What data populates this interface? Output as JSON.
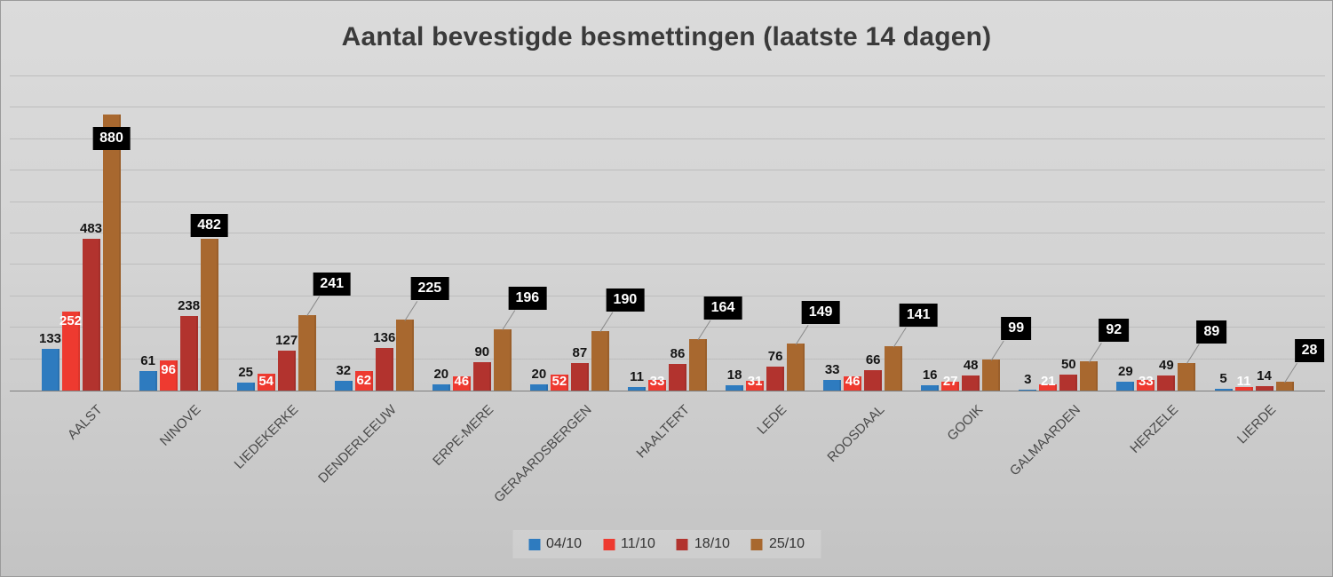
{
  "chart_data": {
    "type": "bar",
    "title": "Aantal bevestigde besmettingen (laatste 14 dagen)",
    "categories": [
      "AALST",
      "NINOVE",
      "LIEDEKERKE",
      "DENDERLEEUW",
      "ERPE-MERE",
      "GERAARDSBERGEN",
      "HAALTERT",
      "LEDE",
      "ROOSDAAL",
      "GOOIK",
      "GALMAARDEN",
      "HERZELE",
      "LIERDE"
    ],
    "series": [
      {
        "name": "04/10",
        "color": "#2E7BBF",
        "values": [
          133,
          61,
          25,
          32,
          20,
          20,
          11,
          18,
          33,
          16,
          3,
          29,
          5
        ]
      },
      {
        "name": "11/10",
        "color": "#EE3A30",
        "values": [
          252,
          96,
          54,
          62,
          46,
          52,
          33,
          31,
          46,
          27,
          21,
          33,
          11
        ]
      },
      {
        "name": "18/10",
        "color": "#B2332E",
        "values": [
          483,
          238,
          127,
          136,
          90,
          87,
          86,
          76,
          66,
          48,
          50,
          49,
          14
        ]
      },
      {
        "name": "25/10",
        "color": "#A8682F",
        "values": [
          880,
          482,
          241,
          225,
          196,
          190,
          164,
          149,
          141,
          99,
          92,
          89,
          28
        ]
      }
    ],
    "ylim": [
      0,
      1000
    ],
    "gridline_step": 100,
    "grid": true,
    "legend_position": "bottom",
    "callout_bg": "#000000",
    "callout_text": "#ffffff",
    "xlabel": "",
    "ylabel": ""
  }
}
